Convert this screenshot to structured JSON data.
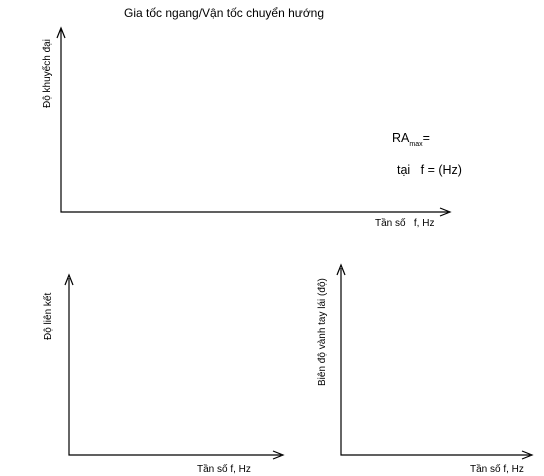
{
  "top_graph": {
    "title": "Gia tốc ngang/Vận tốc chuyển hướng",
    "y_label": "Độ khuyếch đại",
    "x_label": "Tần số   f, Hz",
    "annotation": {
      "ra": "RA",
      "ra_sub": "max",
      "ra_eq": "=",
      "at": "tại   f = (Hz)"
    }
  },
  "bottom_left": {
    "y_label": "Độ liên kết",
    "x_label": "Tần số f, Hz"
  },
  "bottom_right": {
    "y_label": "Biên độ vành tay lái (độ)",
    "x_label": "Tần số f, Hz"
  }
}
